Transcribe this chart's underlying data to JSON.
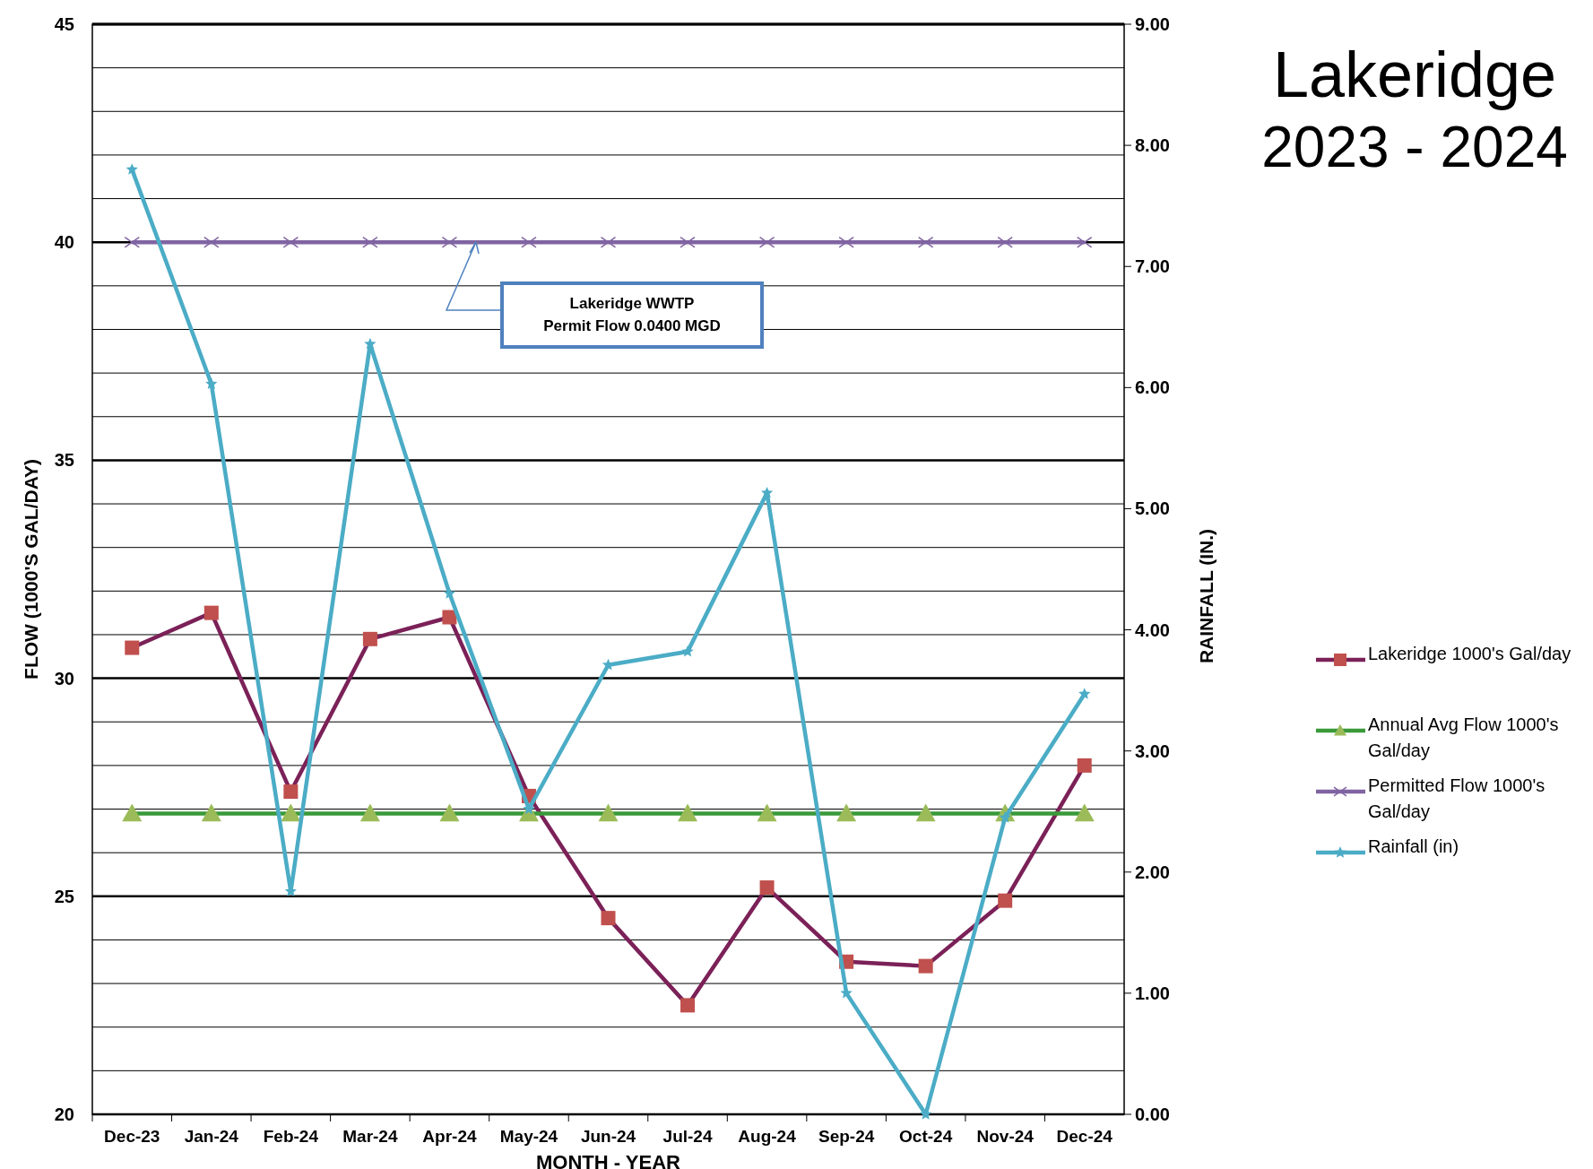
{
  "chart_data": {
    "type": "line",
    "title": "Lakeridge",
    "subtitle": "2023 - 2024",
    "xlabel": "MONTH - YEAR",
    "ylabel": "FLOW (1000'S GAL/DAY)",
    "y2label": "RAINFALL (IN.)",
    "categories": [
      "Dec-23",
      "Jan-24",
      "Feb-24",
      "Mar-24",
      "Apr-24",
      "May-24",
      "Jun-24",
      "Jul-24",
      "Aug-24",
      "Sep-24",
      "Oct-24",
      "Nov-24",
      "Dec-24"
    ],
    "series": [
      {
        "name": "Lakeridge 1000's Gal/day",
        "color": "#7b2158",
        "colors": [
          "#c0504d",
          "#c0504d",
          "#c0504d",
          "#c0504d",
          "#c0504d",
          "#c0504d",
          "#c0504d",
          "#c0504d",
          "#c0504d",
          "#c0504d",
          "#c0504d",
          "#c0504d",
          "#c0504d"
        ],
        "marker": "square",
        "values": [
          30.7,
          31.5,
          27.4,
          30.9,
          31.4,
          27.3,
          24.5,
          22.5,
          25.2,
          23.5,
          23.4,
          24.9,
          28.0
        ]
      },
      {
        "name": "Annual Avg Flow 1000's Gal/day",
        "color": "#3a9a3a",
        "colors": [
          "#9bbb59",
          "#9bbb59",
          "#9bbb59",
          "#9bbb59",
          "#9bbb59",
          "#9bbb59",
          "#9bbb59",
          "#9bbb59",
          "#9bbb59",
          "#9bbb59",
          "#9bbb59",
          "#9bbb59",
          "#9bbb59"
        ],
        "marker": "triangle",
        "values": [
          26.9,
          26.9,
          26.9,
          26.9,
          26.9,
          26.9,
          26.9,
          26.9,
          26.9,
          26.9,
          26.9,
          26.9,
          26.9
        ]
      },
      {
        "name": "Permitted Flow 1000's Gal/day",
        "color": "#8064a2",
        "marker": "cross",
        "values": [
          40,
          40,
          40,
          40,
          40,
          40,
          40,
          40,
          40,
          40,
          40,
          40,
          40
        ]
      },
      {
        "name": "Rainfall   (in)",
        "color": "#4bacc6",
        "marker": "star",
        "axis": "y2",
        "values": [
          7.8,
          6.03,
          1.84,
          6.36,
          4.3,
          2.52,
          3.71,
          3.82,
          5.13,
          1.0,
          0.0,
          2.45,
          3.47
        ]
      }
    ],
    "ylim": [
      20,
      45
    ],
    "yticks": [
      20,
      {
        "value": 21,
        "label": null
      },
      {
        "value": 22,
        "label": null
      },
      {
        "value": 23,
        "label": null
      },
      {
        "value": 24,
        "label": null
      },
      25,
      {
        "value": 26,
        "label": null
      },
      {
        "value": 27,
        "label": null
      },
      {
        "value": 28,
        "label": null
      },
      {
        "value": 29,
        "label": null
      },
      30,
      {
        "value": 31,
        "label": null
      },
      {
        "value": 32,
        "label": null
      },
      {
        "value": 33,
        "label": null
      },
      {
        "value": 34,
        "label": null
      },
      35,
      {
        "value": 36,
        "label": null
      },
      {
        "value": 37,
        "label": null
      },
      {
        "value": 38,
        "label": null
      },
      {
        "value": 39,
        "label": null
      },
      40,
      {
        "value": 41,
        "label": null
      },
      {
        "value": 42,
        "label": null
      },
      {
        "value": 43,
        "label": null
      },
      {
        "value": 44,
        "label": null
      },
      45
    ],
    "y2lim": [
      0,
      9
    ],
    "y2ticks": [
      {
        "value": 0,
        "label": "0.00"
      },
      {
        "value": 1,
        "label": "1.00"
      },
      {
        "value": 2,
        "label": "2.00"
      },
      {
        "value": 3,
        "label": "3.00"
      },
      {
        "value": 4,
        "label": "4.00"
      },
      {
        "value": 5,
        "label": "5.00"
      },
      {
        "value": 6,
        "label": "6.00"
      },
      {
        "value": 7,
        "label": "7.00"
      },
      {
        "value": 8,
        "label": "8.00"
      },
      {
        "value": 9,
        "label": "9.00"
      }
    ],
    "grid": "y",
    "legend": "right",
    "line_style": "solid",
    "annotations": [
      "Lakeridge WWTP\nPermit Flow 0.0400 MGD"
    ]
  }
}
